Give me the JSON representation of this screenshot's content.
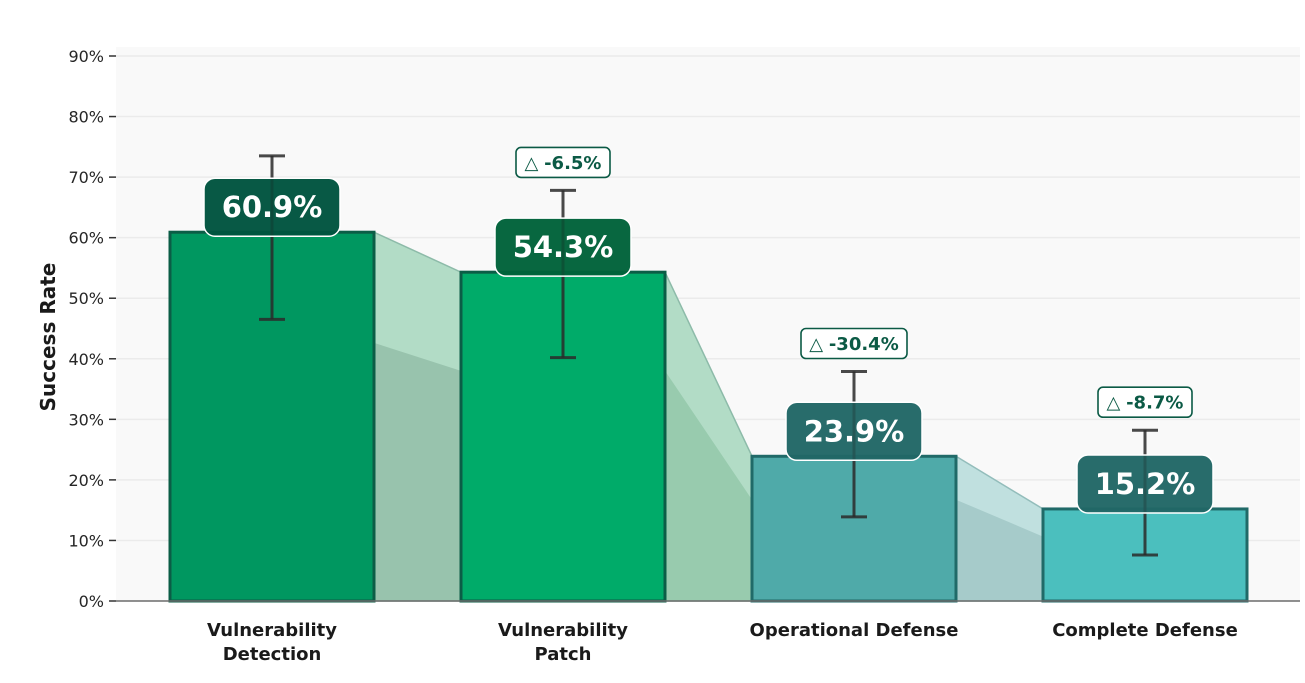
{
  "chart_data": {
    "type": "bar",
    "title": "",
    "xlabel": "",
    "ylabel": "Success Rate",
    "ylim": [
      0,
      90
    ],
    "yticks": [
      0,
      10,
      20,
      30,
      40,
      50,
      60,
      70,
      80,
      90
    ],
    "ytick_labels": [
      "0%",
      "10%",
      "20%",
      "30%",
      "40%",
      "50%",
      "60%",
      "70%",
      "80%",
      "90%"
    ],
    "grid": "horizontal",
    "categories": [
      [
        "Vulnerability",
        "Detection"
      ],
      [
        "Vulnerability",
        "Patch"
      ],
      [
        "Operational Defense"
      ],
      [
        "Complete Defense"
      ]
    ],
    "values": [
      60.9,
      54.3,
      23.9,
      15.2
    ],
    "value_labels": [
      "60.9%",
      "54.3%",
      "23.9%",
      "15.2%"
    ],
    "error_low": [
      46.5,
      40.2,
      13.9,
      7.6
    ],
    "error_high": [
      73.5,
      67.8,
      37.9,
      28.2
    ],
    "deltas": [
      null,
      "△ -6.5%",
      "△ -30.4%",
      "△ -8.7%"
    ],
    "colors": {
      "bars": [
        "#009760",
        "#00ab69",
        "#4faaa9",
        "#4bbfbe"
      ],
      "bar_edges": [
        "#0b5d46",
        "#0b5d46",
        "#206a68",
        "#206a68"
      ],
      "value_boxes": [
        "#00543f",
        "#00623a",
        "#216766",
        "#216766"
      ],
      "flows_light": [
        "#b2dcc6",
        "#b2dcc6",
        "#c0e0df"
      ],
      "flows_dark": [
        "#98c3ad",
        "#98cbae",
        "#a6cbca"
      ],
      "flow_edges": [
        "#8dbba9",
        "#8dbba9",
        "#93bdbb"
      ],
      "delta_border": "#0b5a45",
      "plot_bg": "#f9f9f9",
      "grid": "#ebebeb",
      "error_bar": "#2a2a2a"
    }
  }
}
